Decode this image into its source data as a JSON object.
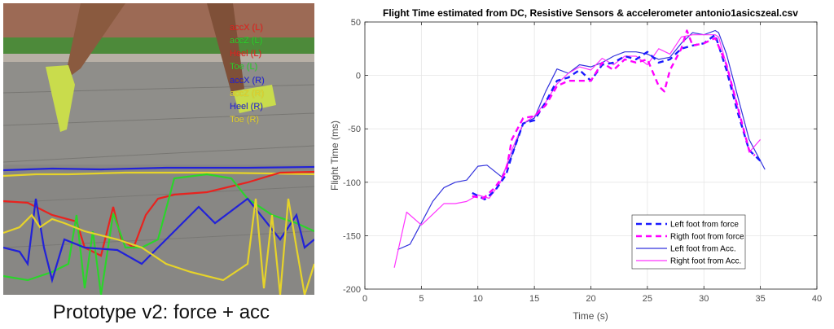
{
  "photo": {
    "caption": "Prototype v2: force + acc",
    "sensor_labels": [
      {
        "text": "accX (L)",
        "color": "#e8231f"
      },
      {
        "text": "accZ (L)",
        "color": "#2bd42b"
      },
      {
        "text": "Heel (L)",
        "color": "#e8231f"
      },
      {
        "text": "Toe (L)",
        "color": "#2bd42b"
      },
      {
        "text": "accX (R)",
        "color": "#2222d8"
      },
      {
        "text": "accZ (R)",
        "color": "#e6d32a"
      },
      {
        "text": "Heel (R)",
        "color": "#2222d8"
      },
      {
        "text": "Toe (R)",
        "color": "#e6d32a"
      }
    ]
  },
  "chart_data": {
    "type": "line",
    "title": "Flight Time estimated from DC, Resistive Sensors & accelerometer antonio1asicszeal.csv",
    "xlabel": "Time (s)",
    "ylabel": "Flight Time (ms)",
    "xlim": [
      0,
      40
    ],
    "ylim": [
      -200,
      50
    ],
    "xticks": [
      "0",
      "5",
      "10",
      "15",
      "20",
      "25",
      "30",
      "35",
      "40"
    ],
    "yticks": [
      "50",
      "0",
      "-50",
      "-100",
      "-150",
      "-200"
    ],
    "grid": true,
    "legend_position": "bottom-right",
    "series": [
      {
        "name": "Left foot from force",
        "color": "#1a1aff",
        "style": "dashed",
        "x": [
          9.5,
          10.6,
          11.5,
          12.5,
          13,
          14,
          15,
          16,
          17,
          18,
          19,
          20,
          21,
          22,
          23,
          24,
          25,
          26,
          27,
          28,
          29,
          30,
          31,
          32,
          33,
          34,
          35
        ],
        "y": [
          -110,
          -116,
          -108,
          -93,
          -75,
          -45,
          -42,
          -25,
          -5,
          -2,
          5,
          -5,
          10,
          12,
          18,
          15,
          22,
          12,
          15,
          25,
          28,
          30,
          38,
          5,
          -35,
          -70,
          -80
        ]
      },
      {
        "name": "Rigth foot from force",
        "color": "#ff00ff",
        "style": "dashed",
        "x": [
          9.5,
          10.5,
          11.5,
          12.5,
          13,
          14,
          15,
          16,
          17,
          18,
          19,
          20,
          21,
          22,
          23,
          24,
          25,
          26,
          26.5,
          27,
          28,
          28.5,
          29,
          30,
          31,
          32,
          33,
          34,
          34.5
        ],
        "y": [
          -113,
          -115,
          -105,
          -90,
          -60,
          -40,
          -38,
          -28,
          -10,
          -5,
          -5,
          -5,
          12,
          5,
          15,
          12,
          15,
          -10,
          -15,
          5,
          25,
          42,
          28,
          30,
          35,
          10,
          -30,
          -70,
          -75
        ]
      },
      {
        "name": "Left foot from Acc.",
        "color": "#3333dd",
        "style": "solid",
        "x": [
          2.9,
          4,
          5,
          6,
          7,
          8,
          9,
          10,
          10.8,
          12.1,
          13,
          14,
          15,
          16,
          17,
          18,
          19,
          20,
          21,
          22,
          23,
          24,
          25,
          26,
          27,
          28,
          29,
          30,
          31,
          31.3,
          32,
          33,
          34,
          35.4
        ],
        "y": [
          -163,
          -158,
          -138,
          -118,
          -105,
          -100,
          -98,
          -85,
          -84,
          -95,
          -75,
          -45,
          -40,
          -15,
          6,
          2,
          10,
          8,
          12,
          18,
          22,
          22,
          20,
          15,
          17,
          30,
          40,
          38,
          42,
          40,
          20,
          -20,
          -60,
          -88
        ]
      },
      {
        "name": "Right foot from Acc.",
        "color": "#ff33ff",
        "style": "solid",
        "x": [
          2.6,
          3.7,
          5,
          6,
          7,
          8,
          9,
          10,
          11,
          12,
          13,
          14,
          15,
          16,
          17,
          18,
          19,
          20,
          21,
          22,
          23,
          24,
          25,
          26,
          27,
          28,
          29,
          30,
          31,
          31.3,
          32,
          33,
          34,
          35
        ],
        "y": [
          -180,
          -128,
          -140,
          -130,
          -120,
          -120,
          -118,
          -112,
          -115,
          -100,
          -70,
          -45,
          -38,
          -25,
          -8,
          2,
          8,
          5,
          16,
          10,
          18,
          18,
          10,
          25,
          20,
          36,
          38,
          38,
          38,
          36,
          10,
          -30,
          -72,
          -60
        ]
      }
    ]
  }
}
